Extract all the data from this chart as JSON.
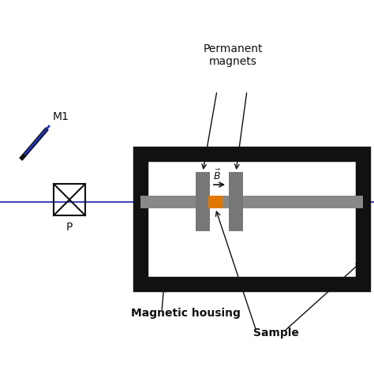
{
  "bg_color": "#ffffff",
  "fig_w": 4.74,
  "fig_h": 4.74,
  "dpi": 100,
  "beam_color": "#4444bb",
  "beam_lw": 1.5,
  "housing_lw": 14,
  "housing_color": "#111111",
  "gray_bar_color": "#888888",
  "magnet_color": "#777777",
  "sample_color": "#e07800",
  "polarizer_color": "#111111",
  "mirror_color": "#2233bb",
  "mirror_bar_color": "#111111",
  "arrow_color": "#111111",
  "text_color": "#111111",
  "label_permanent_magnets": "Permanent\nmagnets",
  "label_B": "$\\vec{B}$",
  "label_magnetic_housing": "Magnetic housing",
  "label_sample": "Sample",
  "label_M1": "M1",
  "label_P": "P"
}
